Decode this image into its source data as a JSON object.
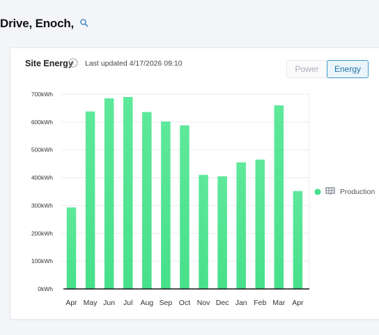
{
  "header": {
    "title": "Drive, Enoch,"
  },
  "card": {
    "title": "Site Energy",
    "last_updated": "Last updated 4/17/2026 09:10",
    "toggle": {
      "power": "Power",
      "energy": "Energy",
      "selected": "Energy"
    }
  },
  "colors": {
    "bar": "#47e08a",
    "bar_top": "#5ee89a",
    "accent": "#3d97c8"
  },
  "chart_data": {
    "type": "bar",
    "categories": [
      "Apr",
      "May",
      "Jun",
      "Jul",
      "Aug",
      "Sep",
      "Oct",
      "Nov",
      "Dec",
      "Jan",
      "Feb",
      "Mar",
      "Apr"
    ],
    "series": [
      {
        "name": "Production",
        "values": [
          293,
          638,
          685,
          690,
          636,
          602,
          588,
          410,
          405,
          455,
          465,
          660,
          352
        ]
      }
    ],
    "y_ticks": [
      "0kWh",
      "100kWh",
      "200kWh",
      "300kWh",
      "400kWh",
      "500kWh",
      "600kWh",
      "700kWh"
    ],
    "ylim": [
      0,
      700
    ],
    "unit": "kWh",
    "grid": true,
    "legend_position": "right"
  }
}
